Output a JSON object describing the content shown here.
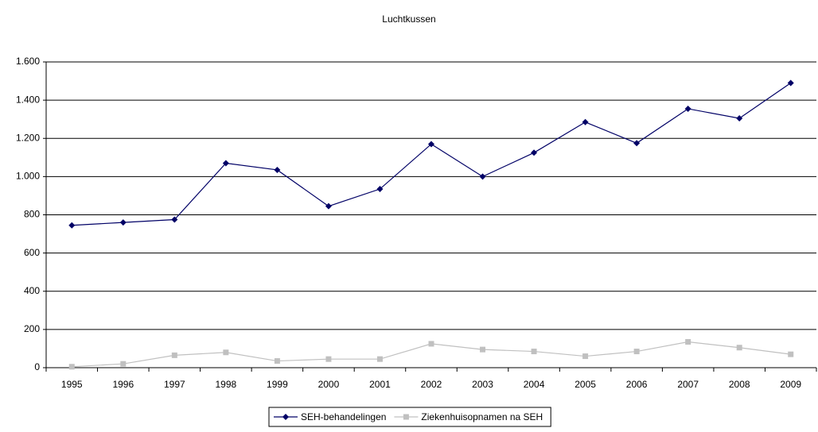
{
  "chart_data": {
    "type": "line",
    "title": "Luchtkussen",
    "categories": [
      "1995",
      "1996",
      "1997",
      "1998",
      "1999",
      "2000",
      "2001",
      "2002",
      "2003",
      "2004",
      "2005",
      "2006",
      "2007",
      "2008",
      "2009"
    ],
    "series": [
      {
        "name": "SEH-behandelingen",
        "color": "#000066",
        "marker": "diamond",
        "values": [
          745,
          760,
          775,
          1070,
          1035,
          845,
          935,
          1170,
          1000,
          1125,
          1285,
          1175,
          1355,
          1305,
          1490
        ]
      },
      {
        "name": "Ziekenhuisopnamen na SEH",
        "color": "#c0c0c0",
        "marker": "square",
        "values": [
          5,
          20,
          65,
          80,
          35,
          45,
          45,
          125,
          95,
          85,
          60,
          85,
          135,
          105,
          70
        ]
      }
    ],
    "ylim": [
      0,
      1600
    ],
    "yticks": [
      0,
      200,
      400,
      600,
      800,
      {
        "value": 1000,
        "label": "1.000"
      },
      {
        "value": 1200,
        "label": "1.200"
      },
      {
        "value": 1400,
        "label": "1.400"
      },
      {
        "value": 1600,
        "label": "1.600"
      }
    ],
    "grid": true,
    "legend": "bottom"
  }
}
